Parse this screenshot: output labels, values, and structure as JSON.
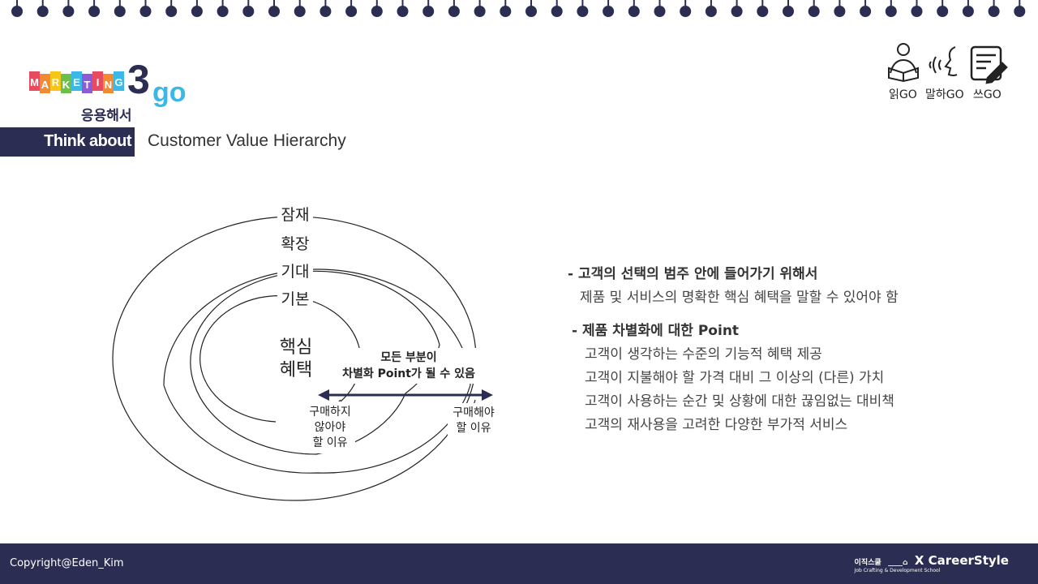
{
  "header": {
    "logo_text": "MARKETING",
    "logo_number": "3",
    "logo_go": "go",
    "subtitle": "응용해서",
    "section_label": "Think about",
    "title": "Customer Value Hierarchy"
  },
  "top_icons": [
    {
      "icon": "reading-person-icon",
      "label": "읽GO"
    },
    {
      "icon": "speaking-face-icon",
      "label": "말하GO"
    },
    {
      "icon": "writing-note-icon",
      "label": "쓰GO"
    }
  ],
  "diagram": {
    "rings": [
      "잠재",
      "확장",
      "기대",
      "기본"
    ],
    "core_line1": "핵심",
    "core_line2": "혜택",
    "center_note_line1": "모든 부분이",
    "center_note_line2": "차별화 Point가 될 수 있음",
    "left_note": [
      "구매하지",
      "않아야",
      "할 이유"
    ],
    "right_note": [
      "구매해야",
      "할 이유"
    ]
  },
  "bullets": [
    {
      "title": "- 고객의 선택의 범주 안에 들어가기 위해서",
      "items": [
        "제품 및 서비스의 명확한 핵심 혜택을 말할 수 있어야 함"
      ]
    },
    {
      "title": "- 제품 차별화에 대한 Point",
      "items": [
        "고객이 생각하는 수준의 기능적 혜택 제공",
        "고객이 지불해야 할 가격 대비 그 이상의 (다른) 가치",
        "고객이 사용하는 순간 및 상황에 대한 끊임없는 대비책",
        "고객의 재사용을 고려한 다양한 부가적 서비스"
      ]
    }
  ],
  "footer": {
    "copyright": "Copyright@Eden_Kim",
    "brand_left": "이직스쿨",
    "brand_sub": "Job Crafting & Development School",
    "brand_right": "X CareerStyle"
  },
  "colors": {
    "navy": "#2b2d52",
    "logo_blue": "#3bb7e8"
  }
}
